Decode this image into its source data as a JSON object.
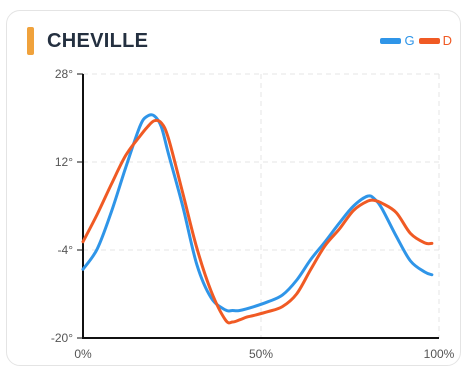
{
  "colors": {
    "accent": "#f0a23c",
    "series_g": "#2f95e8",
    "series_d": "#f05a24",
    "grid": "#e4e4e4",
    "axis": "#111111"
  },
  "chart_data": {
    "type": "line",
    "title": "CHEVILLE",
    "xlabel": "",
    "ylabel": "",
    "xlim": [
      0,
      100
    ],
    "ylim": [
      -20,
      28
    ],
    "x_ticks": [
      "0%",
      "50%",
      "100%"
    ],
    "x_tick_values": [
      0,
      50,
      100
    ],
    "y_ticks": [
      "28°",
      "12°",
      "-4°",
      "-20°"
    ],
    "y_tick_values": [
      28,
      12,
      -4,
      -20
    ],
    "grid": true,
    "legend_position": "top-right",
    "series": [
      {
        "name": "G",
        "color": "#2f95e8",
        "x": [
          0,
          4,
          8,
          12,
          16,
          18,
          20,
          22,
          24,
          28,
          32,
          36,
          40,
          42,
          44,
          48,
          52,
          56,
          60,
          64,
          68,
          72,
          76,
          80,
          82,
          84,
          88,
          92,
          96,
          98
        ],
        "y": [
          -7.5,
          -3.8,
          3,
          11,
          18.5,
          20.3,
          20.4,
          18.4,
          13.5,
          4,
          -6.7,
          -12.7,
          -14.9,
          -15,
          -15,
          -14.3,
          -13.4,
          -12.2,
          -9.5,
          -5.7,
          -2.5,
          0.9,
          4,
          5.8,
          5.2,
          3.5,
          -1.5,
          -6,
          -8,
          -8.5
        ]
      },
      {
        "name": "D",
        "color": "#f05a24",
        "x": [
          0,
          4,
          8,
          12,
          16,
          18,
          20,
          22,
          24,
          28,
          32,
          36,
          40,
          42,
          44,
          46,
          48,
          52,
          56,
          60,
          64,
          68,
          72,
          76,
          80,
          82,
          84,
          88,
          92,
          96,
          98
        ],
        "y": [
          -2.5,
          2.5,
          8,
          13.2,
          16.7,
          18.3,
          19.5,
          19.1,
          16.3,
          6.4,
          -3.7,
          -11.5,
          -16.7,
          -17.1,
          -16.7,
          -16.2,
          -15.9,
          -15.2,
          -14.3,
          -12,
          -7.5,
          -3.2,
          -0.2,
          3.2,
          4.9,
          5,
          4.5,
          2.8,
          -1,
          -2.7,
          -2.8
        ]
      }
    ]
  }
}
